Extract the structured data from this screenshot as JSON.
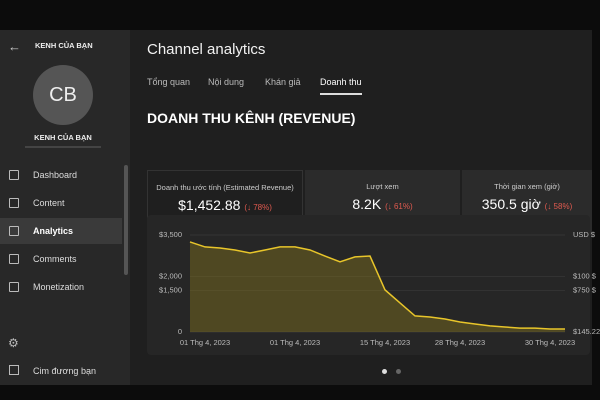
{
  "sidebar": {
    "channel_name": "KENH CỦA BẠN",
    "avatar_initials": "CB",
    "channel_label": "KENH CỦA BẠN",
    "nav": [
      "Dashboard",
      "Content",
      "Analytics",
      "Comments",
      "Monetization"
    ],
    "footer_item": "Cim đương bạn"
  },
  "header": {
    "title": "Channel analytics",
    "tabs": [
      "Tổng quan",
      "Nội dung",
      "Khán giả",
      "Doanh thu"
    ]
  },
  "section_title": "DOANH THU KÊNH (REVENUE)",
  "metrics": [
    {
      "label": "Doanh thu ước tính (Estimated Revenue)",
      "value": "$1,452.88",
      "change": "(↓ 78%)"
    },
    {
      "label": "Lượt xem",
      "value": "8.2K",
      "change": "(↓ 61%)"
    },
    {
      "label": "Thời gian xem (giờ)",
      "value": "350.5 giờ",
      "change": "(↓ 58%)"
    }
  ],
  "chart_data": {
    "type": "line",
    "categories": [
      null,
      "01 Thg 4, 2023",
      null,
      null,
      null,
      null,
      null,
      "01 Thg 4, 2023",
      null,
      null,
      null,
      null,
      null,
      "15 Thg 4, 2023",
      null,
      null,
      null,
      null,
      "28 Thg 4, 2023",
      null,
      null,
      null,
      null,
      null,
      "30 Thg 4, 2023",
      null
    ],
    "values": [
      3250,
      3070,
      3030,
      2960,
      2850,
      2960,
      3070,
      3070,
      2960,
      2740,
      2530,
      2710,
      2740,
      1520,
      1050,
      580,
      540,
      470,
      360,
      290,
      220,
      180,
      140,
      140,
      110,
      110
    ],
    "color": "#e8c52a",
    "ylim": [
      0,
      3500
    ],
    "yticks": [
      0,
      {
        "value": 1500,
        "label": "$1,500"
      },
      {
        "value": 2000,
        "label": "$2,000"
      },
      {
        "value": 3500,
        "label": "$3,500"
      }
    ],
    "y2_labels": [
      "$145.22",
      "$750 $",
      "$100 $",
      "USD $"
    ],
    "grid": true
  }
}
